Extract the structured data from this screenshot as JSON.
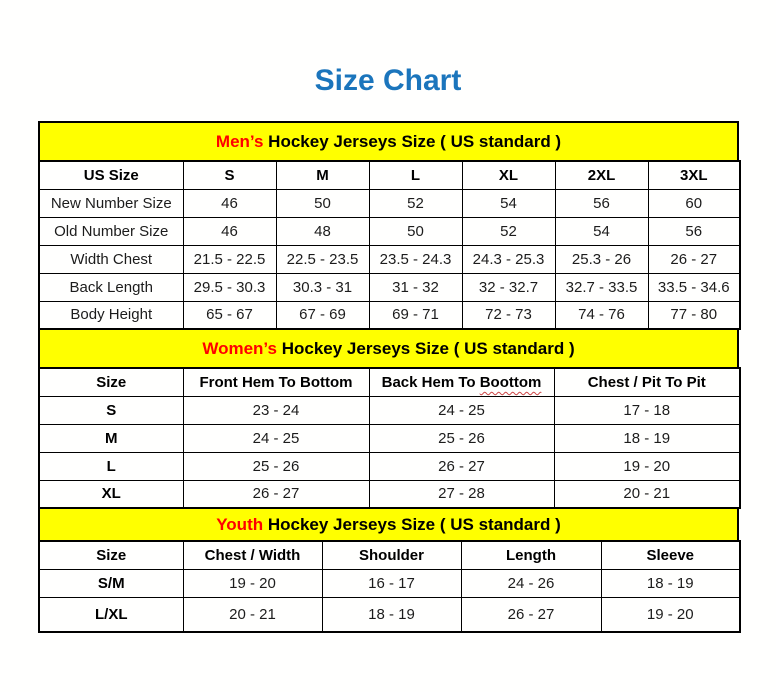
{
  "page": {
    "title": "Size Chart"
  },
  "colors": {
    "title": "#1b75bc",
    "band_background": "#ffff00",
    "highlight": "#ff0000",
    "border": "#000000"
  },
  "sections": [
    {
      "id": "mens",
      "heading_highlight": "Men’s",
      "heading_rest": " Hockey Jerseys Size ( US standard )",
      "row_labels_bold": false,
      "columns": [
        {
          "label": "US Size"
        },
        {
          "label": "S"
        },
        {
          "label": "M"
        },
        {
          "label": "L"
        },
        {
          "label": "XL"
        },
        {
          "label": "2XL"
        },
        {
          "label": "3XL"
        }
      ],
      "rows": [
        {
          "label": "New Number Size",
          "values": [
            "46",
            "50",
            "52",
            "54",
            "56",
            "60"
          ]
        },
        {
          "label": "Old Number Size",
          "values": [
            "46",
            "48",
            "50",
            "52",
            "54",
            "56"
          ]
        },
        {
          "label": "Width Chest",
          "values": [
            "21.5 - 22.5",
            "22.5 - 23.5",
            "23.5 - 24.3",
            "24.3 - 25.3",
            "25.3 - 26",
            "26 - 27"
          ]
        },
        {
          "label": "Back Length",
          "values": [
            "29.5 - 30.3",
            "30.3 - 31",
            "31 - 32",
            "32 - 32.7",
            "32.7 - 33.5",
            "33.5 - 34.6"
          ]
        },
        {
          "label": "Body Height",
          "values": [
            "65 - 67",
            "67 - 69",
            "69 - 71",
            "72 - 73",
            "74 - 76",
            "77 - 80"
          ]
        }
      ]
    },
    {
      "id": "womens",
      "heading_highlight": "Women’s",
      "heading_rest": " Hockey Jerseys Size ( US standard )",
      "row_labels_bold": true,
      "columns": [
        {
          "label": "Size"
        },
        {
          "label": "Front Hem To Bottom"
        },
        {
          "label": "Back Hem To ",
          "squiggle": "Boottom"
        },
        {
          "label": "Chest / Pit To Pit"
        }
      ],
      "rows": [
        {
          "label": "S",
          "values": [
            "23 - 24",
            "24 - 25",
            "17 - 18"
          ]
        },
        {
          "label": "M",
          "values": [
            "24 - 25",
            "25 - 26",
            "18 - 19"
          ]
        },
        {
          "label": "L",
          "values": [
            "25 - 26",
            "26 - 27",
            "19 - 20"
          ]
        },
        {
          "label": "XL",
          "values": [
            "26 - 27",
            "27 - 28",
            "20 - 21"
          ]
        }
      ]
    },
    {
      "id": "youth",
      "heading_highlight": "Youth",
      "heading_rest": " Hockey Jerseys Size ( US standard )",
      "row_labels_bold": true,
      "columns": [
        {
          "label": "Size"
        },
        {
          "label": "Chest / Width"
        },
        {
          "label": "Shoulder"
        },
        {
          "label": "Length"
        },
        {
          "label": "Sleeve"
        }
      ],
      "rows": [
        {
          "label": "S/M",
          "values": [
            "19 - 20",
            "16 - 17",
            "24 - 26",
            "18 - 19"
          ]
        },
        {
          "label": "L/XL",
          "values": [
            "20 - 21",
            "18 - 19",
            "26 - 27",
            "19 - 20"
          ]
        }
      ]
    }
  ]
}
